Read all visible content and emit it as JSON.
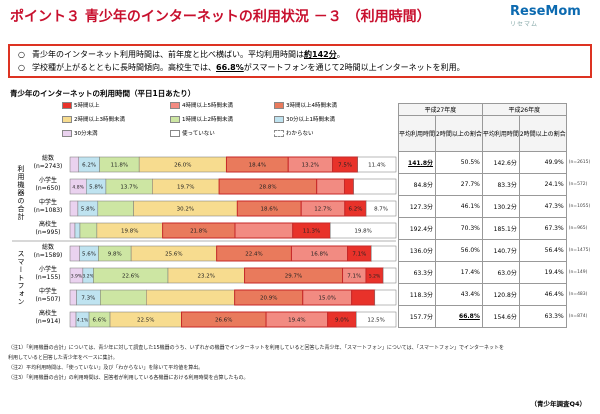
{
  "title": "ポイント３ 青少年のインターネットの利用状況 －３ （利用時間）",
  "logo": {
    "text": "ReseMom",
    "sub": "リセマム"
  },
  "summary": [
    {
      "bullet": "○",
      "text_a": "青少年のインターネット利用時間は、前年度と比べ横ばい。平均利用時間は",
      "highlight": "約142分",
      "text_b": "。"
    },
    {
      "bullet": "○",
      "text_a": "学校種が上がるとともに長時間傾向。高校生では、",
      "highlight": "66.8%",
      "text_b": "がスマートフォンを通じて2時間以上インターネットを利用。"
    }
  ],
  "chart_title": "青少年のインターネットの利用時間（平日1日あたり）",
  "group_labels": [
    "利用機器の合計",
    "スマートフォン"
  ],
  "table": {
    "year_headers": [
      "平成27年度",
      "平成26年度"
    ],
    "col_headers": [
      "平均利用時間",
      "2時間以上の割合",
      "平均利用時間",
      "2時間以上の割合"
    ],
    "rows": [
      {
        "avg27": "141.8分",
        "over2_27": "50.5%",
        "avg26": "142.6分",
        "over2_26": "49.9%",
        "n26": "(n=2615)"
      },
      {
        "avg27": "84.8分",
        "over2_27": "27.7%",
        "avg26": "83.3分",
        "over2_26": "24.1%",
        "n26": "(n=572)"
      },
      {
        "avg27": "127.3分",
        "over2_27": "46.1%",
        "avg26": "130.2分",
        "over2_26": "47.3%",
        "n26": "(n=1055)"
      },
      {
        "avg27": "192.4分",
        "over2_27": "70.3%",
        "avg26": "185.1分",
        "over2_26": "67.3%",
        "n26": "(n=965)"
      },
      {
        "avg27": "136.0分",
        "over2_27": "56.0%",
        "avg26": "140.7分",
        "over2_26": "56.4%",
        "n26": "(n=1475)"
      },
      {
        "avg27": "63.3分",
        "over2_27": "17.4%",
        "avg26": "63.0分",
        "over2_26": "19.4%",
        "n26": "(n=149)"
      },
      {
        "avg27": "118.3分",
        "over2_27": "43.4%",
        "avg26": "120.8分",
        "over2_26": "46.4%",
        "n26": "(n=483)"
      },
      {
        "avg27": "157.7分",
        "over2_27": "66.8%",
        "avg26": "154.6分",
        "over2_26": "63.3%",
        "n26": "(n=874)"
      }
    ]
  },
  "notes": [
    "（注1）「利用機器の合計」については、青少年に対して調査した15機器のうち、いずれかの機器でインターネットを利用していると回答した青少年、「スマートフォン」については、「スマートフォン」でインターネットを",
    "利用していると回答した青少年をベースに集計。",
    "（注2）平均利用時間は、「使っていない」及び「わからない」を除いて平均値を算出。",
    "（注3）「利用機器の合計」の利用時間は、回答者が利用している各機器における利用時間を合算したもの。"
  ],
  "source": "（青少年調査Q4）",
  "colors": {
    "over5h": "#e8322a",
    "h4to5": "#f28b82",
    "h3to4": "#e97a5c",
    "h2to3": "#f7dc8f",
    "h1to2": "#cde6a3",
    "m30to60": "#bfe3f0",
    "under30": "#ead2ef",
    "not_used": "#ffffff",
    "unknown": "#ffffff",
    "frame": "#d32f2f",
    "title": "#c8102e"
  },
  "chart_data": {
    "type": "bar",
    "orientation": "horizontal",
    "stacked": true,
    "categories": [
      "総数 (n=2743)",
      "小学生 (n=650)",
      "中学生 (n=1083)",
      "高校生 (n=995)",
      "総数 (n=1589)",
      "小学生 (n=155)",
      "中学生 (n=507)",
      "高校生 (n=914)"
    ],
    "category_names": [
      "総数",
      "小学生",
      "中学生",
      "高校生",
      "総数",
      "小学生",
      "中学生",
      "高校生"
    ],
    "category_ns": [
      "(n=2743)",
      "(n=650)",
      "(n=1083)",
      "(n=995)",
      "(n=1589)",
      "(n=155)",
      "(n=507)",
      "(n=914)"
    ],
    "xlim": [
      0,
      100
    ],
    "series": [
      {
        "name": "30分未満",
        "values": [
          2.6,
          4.8,
          2.3,
          1.5,
          2.9,
          3.9,
          2.0,
          1.9
        ],
        "labels": [
          "2.6%",
          "4.8%",
          "2.3%",
          "1.5%",
          "2.9%",
          "3.9%",
          "2.0%",
          "1.9%"
        ]
      },
      {
        "name": "30分以上1時間未満",
        "values": [
          6.2,
          5.8,
          5.8,
          1.5,
          5.6,
          3.2,
          7.3,
          4.1
        ],
        "labels": [
          "6.2%",
          "5.8%",
          "5.8%",
          "1.5%",
          "5.6%",
          "3.2%",
          "7.3%",
          "4.1%"
        ]
      },
      {
        "name": "1時間以上2時間未満",
        "values": [
          11.8,
          13.7,
          10.4,
          5.1,
          9.8,
          22.6,
          14.1,
          6.6
        ],
        "labels": [
          "11.8%",
          "13.7%",
          "",
          "",
          "9.8%",
          "22.6%",
          "",
          "6.6%"
        ]
      },
      {
        "name": "2時間以上3時間未満",
        "values": [
          26.0,
          19.7,
          30.2,
          19.8,
          25.6,
          23.2,
          27.1,
          22.5
        ],
        "labels": [
          "26.0%",
          "19.7%",
          "30.2%",
          "19.8%",
          "25.6%",
          "23.2%",
          "",
          "22.5%"
        ]
      },
      {
        "name": "3時間以上4時間未満",
        "values": [
          18.4,
          28.8,
          18.6,
          21.8,
          22.4,
          29.7,
          20.9,
          26.6
        ],
        "labels": [
          "18.4%",
          "28.8%",
          "18.6%",
          "21.8%",
          "22.4%",
          "29.7%",
          "20.9%",
          "26.6%"
        ]
      },
      {
        "name": "4時間以上5時間未満",
        "values": [
          13.2,
          8.2,
          12.7,
          17.4,
          16.8,
          7.1,
          15.0,
          19.4
        ],
        "labels": [
          "13.2%",
          "",
          "12.7%",
          "",
          "16.8%",
          "7.1%",
          "15.0%",
          "19.4%"
        ]
      },
      {
        "name": "5時間以上",
        "values": [
          7.5,
          2.7,
          6.2,
          11.3,
          7.1,
          5.2,
          7.1,
          9.0
        ],
        "labels": [
          "7.5%",
          "",
          "6.2%",
          "11.3%",
          "7.1%",
          "5.2%",
          "",
          "9.0%"
        ]
      },
      {
        "name": "使っていない",
        "values": [
          11.4,
          12.5,
          8.7,
          19.8,
          7.4,
          3.9,
          6.5,
          12.5
        ],
        "labels": [
          "11.4%",
          "",
          "8.7%",
          "19.8%",
          "",
          "",
          "",
          "12.5%"
        ]
      },
      {
        "name": "わからない",
        "values": [
          0.0,
          0.0,
          0.0,
          0.0,
          0.0,
          0.0,
          0.0,
          0.0
        ],
        "labels": [
          "",
          "",
          "",
          "",
          "",
          "",
          "",
          ""
        ]
      }
    ],
    "legend": [
      {
        "name": "5時間以上",
        "color": "#e8322a"
      },
      {
        "name": "4時間以上5時間未満",
        "color": "#f28b82"
      },
      {
        "name": "3時間以上4時間未満",
        "color": "#e97a5c"
      },
      {
        "name": "2時間以上3時間未満",
        "color": "#f7dc8f"
      },
      {
        "name": "1時間以上2時間未満",
        "color": "#cde6a3"
      },
      {
        "name": "30分以上1時間未満",
        "color": "#bfe3f0"
      },
      {
        "name": "30分未満",
        "color": "#ead2ef"
      },
      {
        "name": "使っていない",
        "color": "#ffffff"
      },
      {
        "name": "わからない",
        "color": "#ffffff"
      }
    ]
  }
}
